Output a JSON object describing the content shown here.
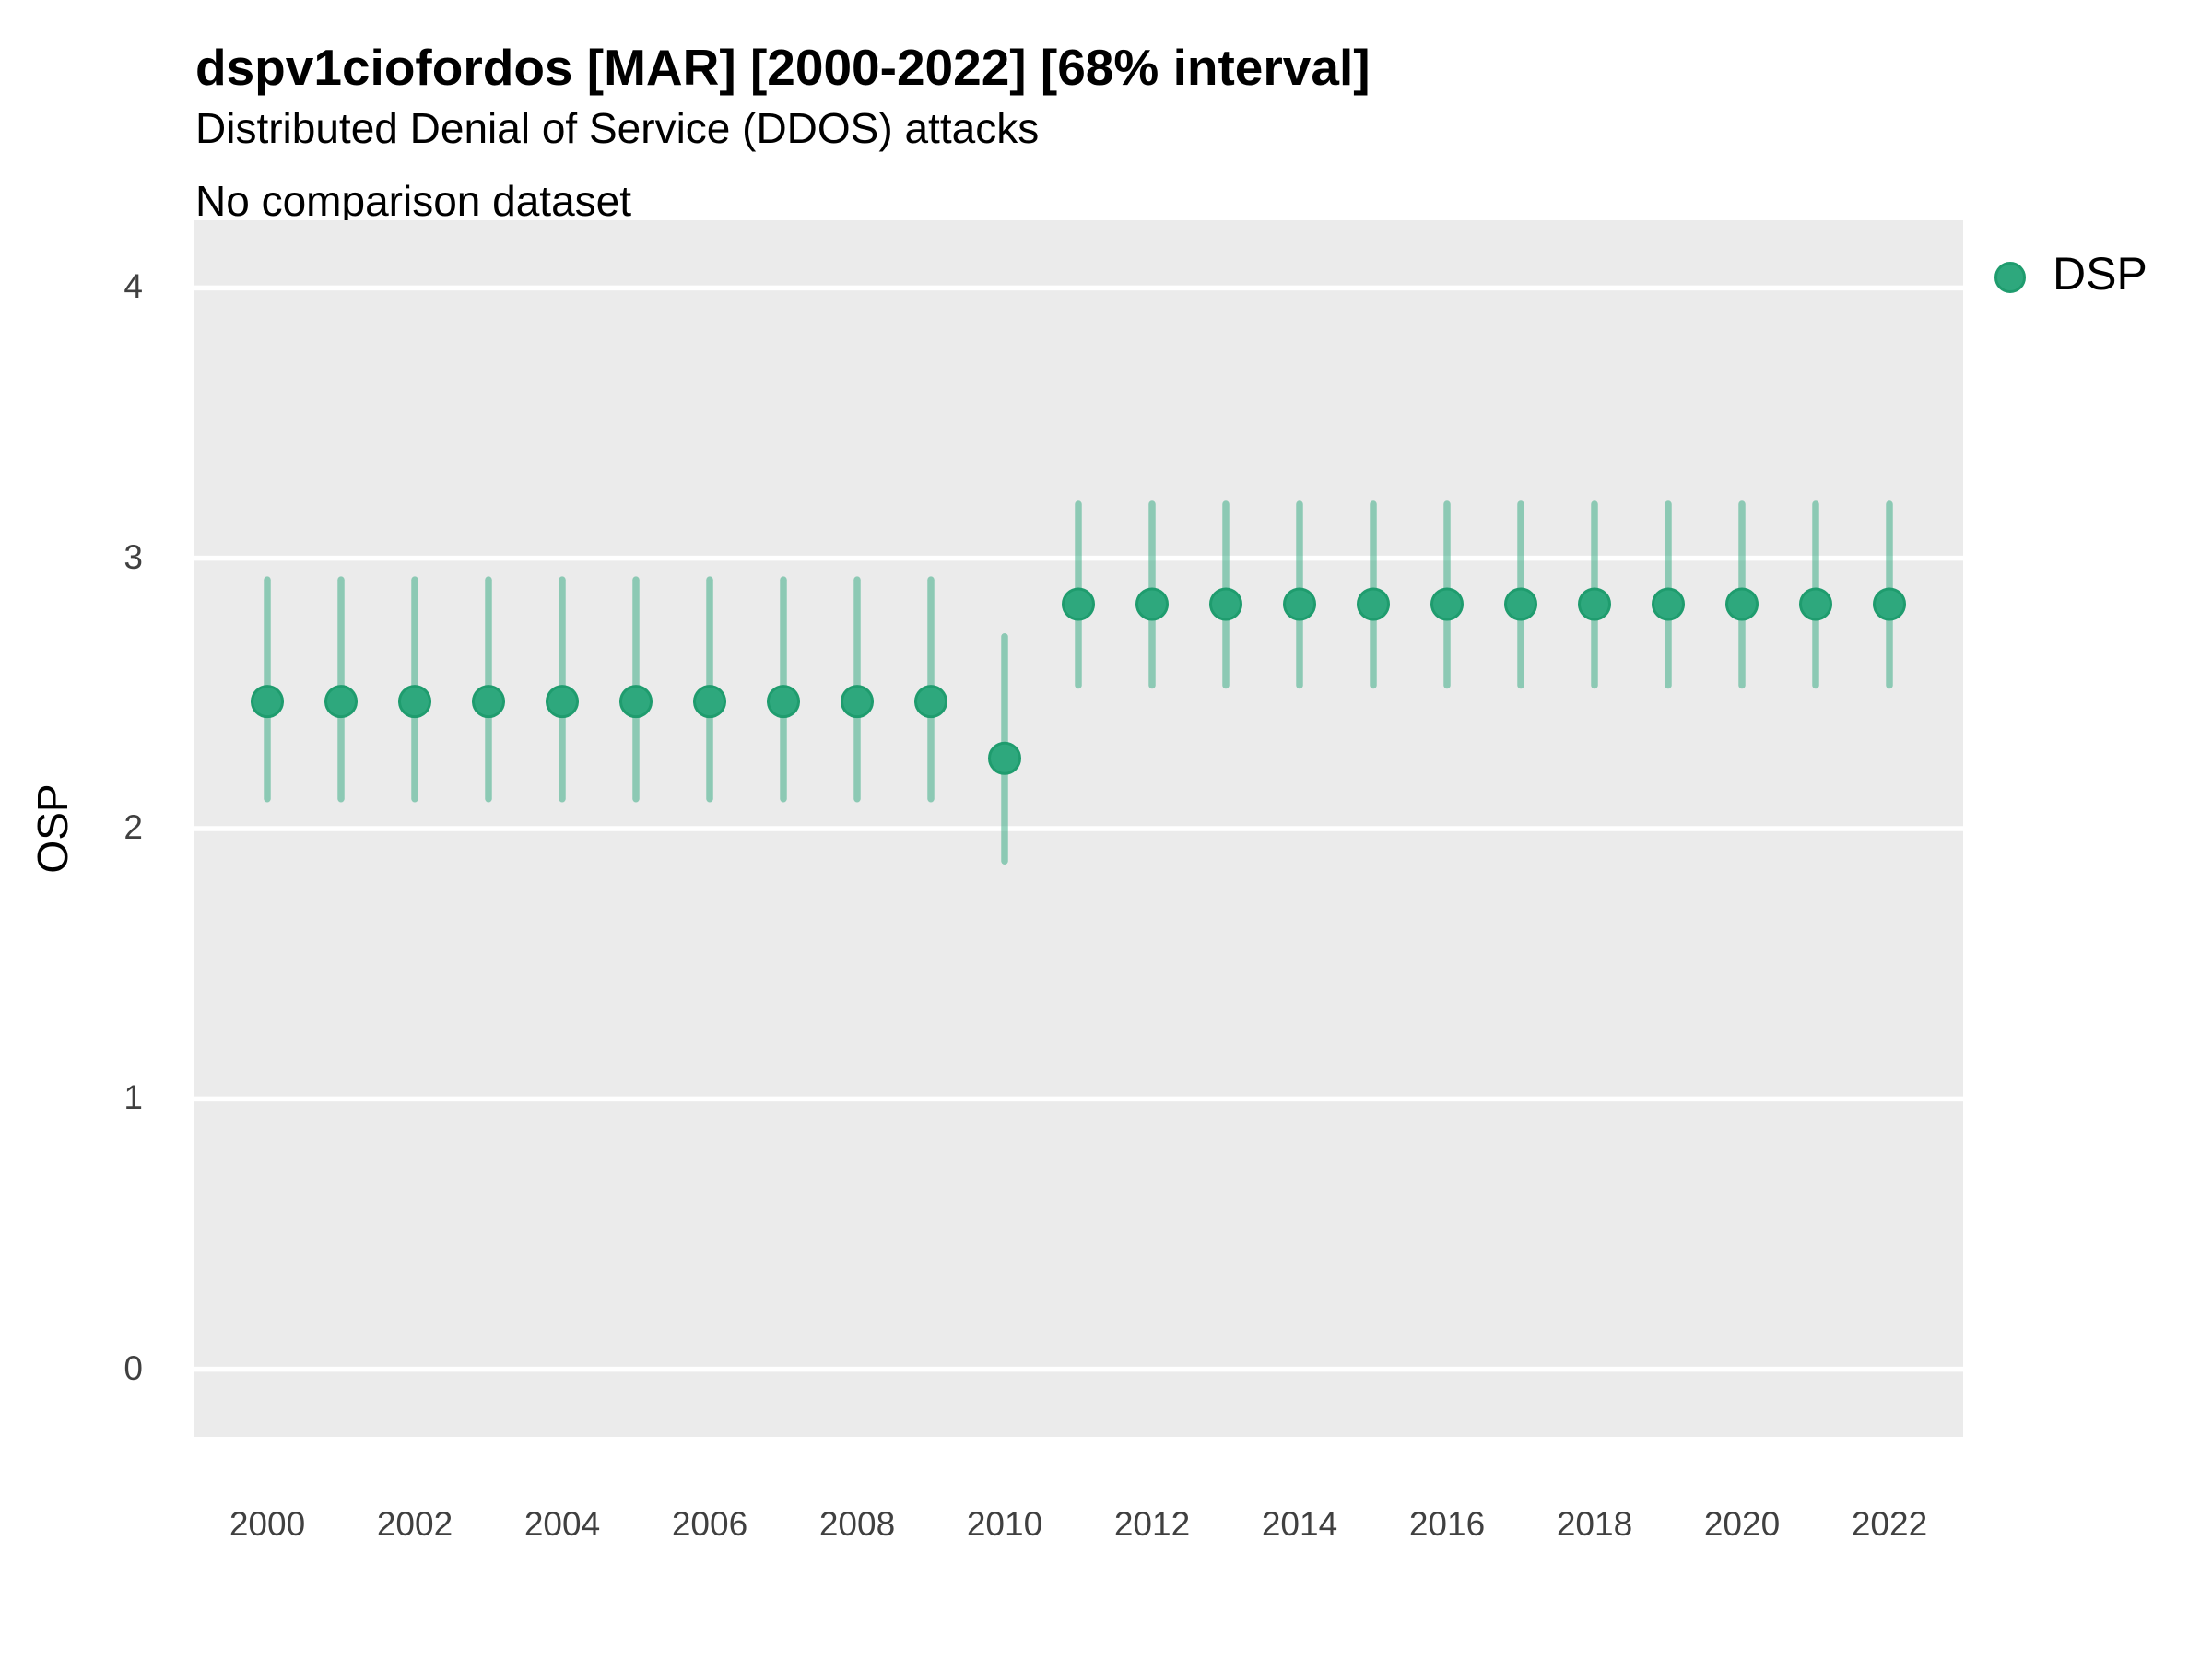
{
  "header": {
    "title": "dspv1ciofordos [MAR] [2000-2022] [68% interval]",
    "subtitle": "Distributed Denial of Service (DDOS) attacks",
    "comparison_note": "No comparison dataset"
  },
  "axes": {
    "y_label": "OSP",
    "x_label": ""
  },
  "legend": {
    "position": "right",
    "items": [
      {
        "label": "DSP",
        "color": "#2EA87D"
      }
    ]
  },
  "colors": {
    "point_fill": "#2EA87D",
    "point_stroke": "#1F9C6E",
    "interval_line": "rgba(46,168,125,0.5)",
    "panel_background": "#EBEBEB",
    "gridline": "#FFFFFF",
    "tick_text": "#404040"
  },
  "chart_data": {
    "type": "scatter",
    "subtype": "pointrange",
    "title": "dspv1ciofordos [MAR] [2000-2022] [68% interval]",
    "subtitle": "Distributed Denial of Service (DDOS) attacks",
    "note": "No comparison dataset",
    "interval": "68%",
    "xlabel": "",
    "ylabel": "OSP",
    "xlim": [
      1999,
      2023
    ],
    "ylim": [
      -0.25,
      4.25
    ],
    "x_ticks": [
      2000,
      2002,
      2004,
      2006,
      2008,
      2010,
      2012,
      2014,
      2016,
      2018,
      2020,
      2022
    ],
    "y_ticks": [
      0,
      1,
      2,
      3,
      4
    ],
    "grid": "major-horizontal",
    "legend_position": "right",
    "series": [
      {
        "name": "DSP",
        "x": [
          2000,
          2001,
          2002,
          2003,
          2004,
          2005,
          2006,
          2007,
          2008,
          2009,
          2010,
          2011,
          2012,
          2013,
          2014,
          2015,
          2016,
          2017,
          2018,
          2019,
          2020,
          2021,
          2022
        ],
        "y": [
          2.47,
          2.47,
          2.47,
          2.47,
          2.47,
          2.47,
          2.47,
          2.47,
          2.47,
          2.47,
          2.26,
          2.83,
          2.83,
          2.83,
          2.83,
          2.83,
          2.83,
          2.83,
          2.83,
          2.83,
          2.83,
          2.83,
          2.83
        ],
        "y_lo": [
          2.11,
          2.11,
          2.11,
          2.11,
          2.11,
          2.11,
          2.11,
          2.11,
          2.11,
          2.11,
          1.88,
          2.53,
          2.53,
          2.53,
          2.53,
          2.53,
          2.53,
          2.53,
          2.53,
          2.53,
          2.53,
          2.53,
          2.53
        ],
        "y_hi": [
          2.92,
          2.92,
          2.92,
          2.92,
          2.92,
          2.92,
          2.92,
          2.92,
          2.92,
          2.92,
          2.71,
          3.2,
          3.2,
          3.2,
          3.2,
          3.2,
          3.2,
          3.2,
          3.2,
          3.2,
          3.2,
          3.2,
          3.2
        ]
      }
    ]
  }
}
